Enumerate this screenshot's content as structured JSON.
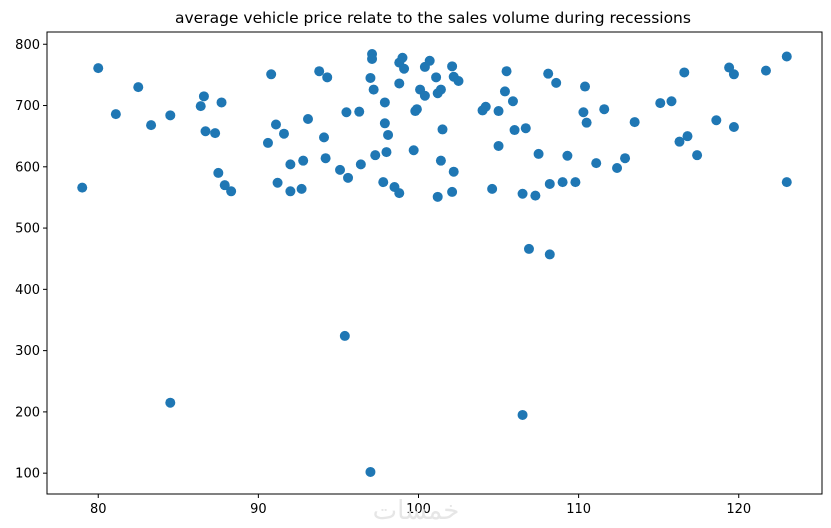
{
  "chart_data": {
    "type": "scatter",
    "title": "average vehicle price relate to the sales volume during recessions",
    "xlabel": "",
    "ylabel": "",
    "xlim": [
      76.8,
      125.2
    ],
    "ylim": [
      66,
      820
    ],
    "xticks": [
      80,
      90,
      100,
      110,
      120
    ],
    "yticks": [
      100,
      200,
      300,
      400,
      500,
      600,
      700,
      800
    ],
    "grid": false,
    "color": "#1f77b4",
    "watermark": "خمسات",
    "points": [
      {
        "x": 79.0,
        "y": 566
      },
      {
        "x": 80.0,
        "y": 761
      },
      {
        "x": 81.1,
        "y": 686
      },
      {
        "x": 82.5,
        "y": 730
      },
      {
        "x": 83.3,
        "y": 668
      },
      {
        "x": 84.5,
        "y": 684
      },
      {
        "x": 84.5,
        "y": 215
      },
      {
        "x": 86.4,
        "y": 699
      },
      {
        "x": 86.6,
        "y": 715
      },
      {
        "x": 86.7,
        "y": 658
      },
      {
        "x": 87.3,
        "y": 655
      },
      {
        "x": 87.5,
        "y": 590
      },
      {
        "x": 87.7,
        "y": 705
      },
      {
        "x": 87.9,
        "y": 570
      },
      {
        "x": 88.3,
        "y": 560
      },
      {
        "x": 90.6,
        "y": 639
      },
      {
        "x": 90.8,
        "y": 751
      },
      {
        "x": 91.1,
        "y": 669
      },
      {
        "x": 91.2,
        "y": 574
      },
      {
        "x": 91.6,
        "y": 654
      },
      {
        "x": 92.0,
        "y": 604
      },
      {
        "x": 92.0,
        "y": 560
      },
      {
        "x": 92.7,
        "y": 564
      },
      {
        "x": 92.8,
        "y": 610
      },
      {
        "x": 93.1,
        "y": 678
      },
      {
        "x": 93.8,
        "y": 756
      },
      {
        "x": 94.1,
        "y": 648
      },
      {
        "x": 94.2,
        "y": 614
      },
      {
        "x": 94.3,
        "y": 746
      },
      {
        "x": 95.1,
        "y": 595
      },
      {
        "x": 95.4,
        "y": 324
      },
      {
        "x": 95.5,
        "y": 689
      },
      {
        "x": 95.6,
        "y": 582
      },
      {
        "x": 96.3,
        "y": 690
      },
      {
        "x": 96.4,
        "y": 604
      },
      {
        "x": 97.0,
        "y": 102
      },
      {
        "x": 97.0,
        "y": 745
      },
      {
        "x": 97.1,
        "y": 784
      },
      {
        "x": 97.1,
        "y": 776
      },
      {
        "x": 97.2,
        "y": 726
      },
      {
        "x": 97.3,
        "y": 619
      },
      {
        "x": 97.8,
        "y": 575
      },
      {
        "x": 97.9,
        "y": 705
      },
      {
        "x": 97.9,
        "y": 671
      },
      {
        "x": 98.0,
        "y": 624
      },
      {
        "x": 98.1,
        "y": 652
      },
      {
        "x": 98.5,
        "y": 567
      },
      {
        "x": 98.8,
        "y": 770
      },
      {
        "x": 98.8,
        "y": 557
      },
      {
        "x": 98.8,
        "y": 736
      },
      {
        "x": 99.0,
        "y": 778
      },
      {
        "x": 99.1,
        "y": 760
      },
      {
        "x": 99.7,
        "y": 627
      },
      {
        "x": 99.8,
        "y": 691
      },
      {
        "x": 99.9,
        "y": 694
      },
      {
        "x": 100.1,
        "y": 726
      },
      {
        "x": 100.4,
        "y": 716
      },
      {
        "x": 100.4,
        "y": 763
      },
      {
        "x": 100.7,
        "y": 773
      },
      {
        "x": 101.1,
        "y": 746
      },
      {
        "x": 101.2,
        "y": 720
      },
      {
        "x": 101.2,
        "y": 551
      },
      {
        "x": 101.4,
        "y": 726
      },
      {
        "x": 101.4,
        "y": 610
      },
      {
        "x": 101.5,
        "y": 661
      },
      {
        "x": 102.1,
        "y": 559
      },
      {
        "x": 102.1,
        "y": 764
      },
      {
        "x": 102.2,
        "y": 747
      },
      {
        "x": 102.2,
        "y": 592
      },
      {
        "x": 102.5,
        "y": 740
      },
      {
        "x": 104.0,
        "y": 692
      },
      {
        "x": 104.2,
        "y": 698
      },
      {
        "x": 104.6,
        "y": 564
      },
      {
        "x": 105.0,
        "y": 634
      },
      {
        "x": 105.0,
        "y": 691
      },
      {
        "x": 105.4,
        "y": 723
      },
      {
        "x": 105.5,
        "y": 756
      },
      {
        "x": 105.9,
        "y": 707
      },
      {
        "x": 106.0,
        "y": 660
      },
      {
        "x": 106.5,
        "y": 195
      },
      {
        "x": 106.5,
        "y": 556
      },
      {
        "x": 106.7,
        "y": 663
      },
      {
        "x": 106.9,
        "y": 466
      },
      {
        "x": 107.3,
        "y": 553
      },
      {
        "x": 107.5,
        "y": 621
      },
      {
        "x": 108.1,
        "y": 752
      },
      {
        "x": 108.2,
        "y": 457
      },
      {
        "x": 108.2,
        "y": 572
      },
      {
        "x": 108.6,
        "y": 737
      },
      {
        "x": 109.0,
        "y": 575
      },
      {
        "x": 109.3,
        "y": 618
      },
      {
        "x": 109.8,
        "y": 575
      },
      {
        "x": 110.3,
        "y": 689
      },
      {
        "x": 110.4,
        "y": 731
      },
      {
        "x": 110.5,
        "y": 672
      },
      {
        "x": 111.1,
        "y": 606
      },
      {
        "x": 111.6,
        "y": 694
      },
      {
        "x": 112.4,
        "y": 598
      },
      {
        "x": 112.9,
        "y": 614
      },
      {
        "x": 113.5,
        "y": 673
      },
      {
        "x": 115.1,
        "y": 704
      },
      {
        "x": 115.8,
        "y": 707
      },
      {
        "x": 116.3,
        "y": 641
      },
      {
        "x": 116.6,
        "y": 754
      },
      {
        "x": 116.8,
        "y": 650
      },
      {
        "x": 117.4,
        "y": 619
      },
      {
        "x": 118.6,
        "y": 676
      },
      {
        "x": 119.4,
        "y": 762
      },
      {
        "x": 119.7,
        "y": 751
      },
      {
        "x": 119.7,
        "y": 665
      },
      {
        "x": 121.7,
        "y": 757
      },
      {
        "x": 123.0,
        "y": 780
      },
      {
        "x": 123.0,
        "y": 575
      }
    ]
  }
}
